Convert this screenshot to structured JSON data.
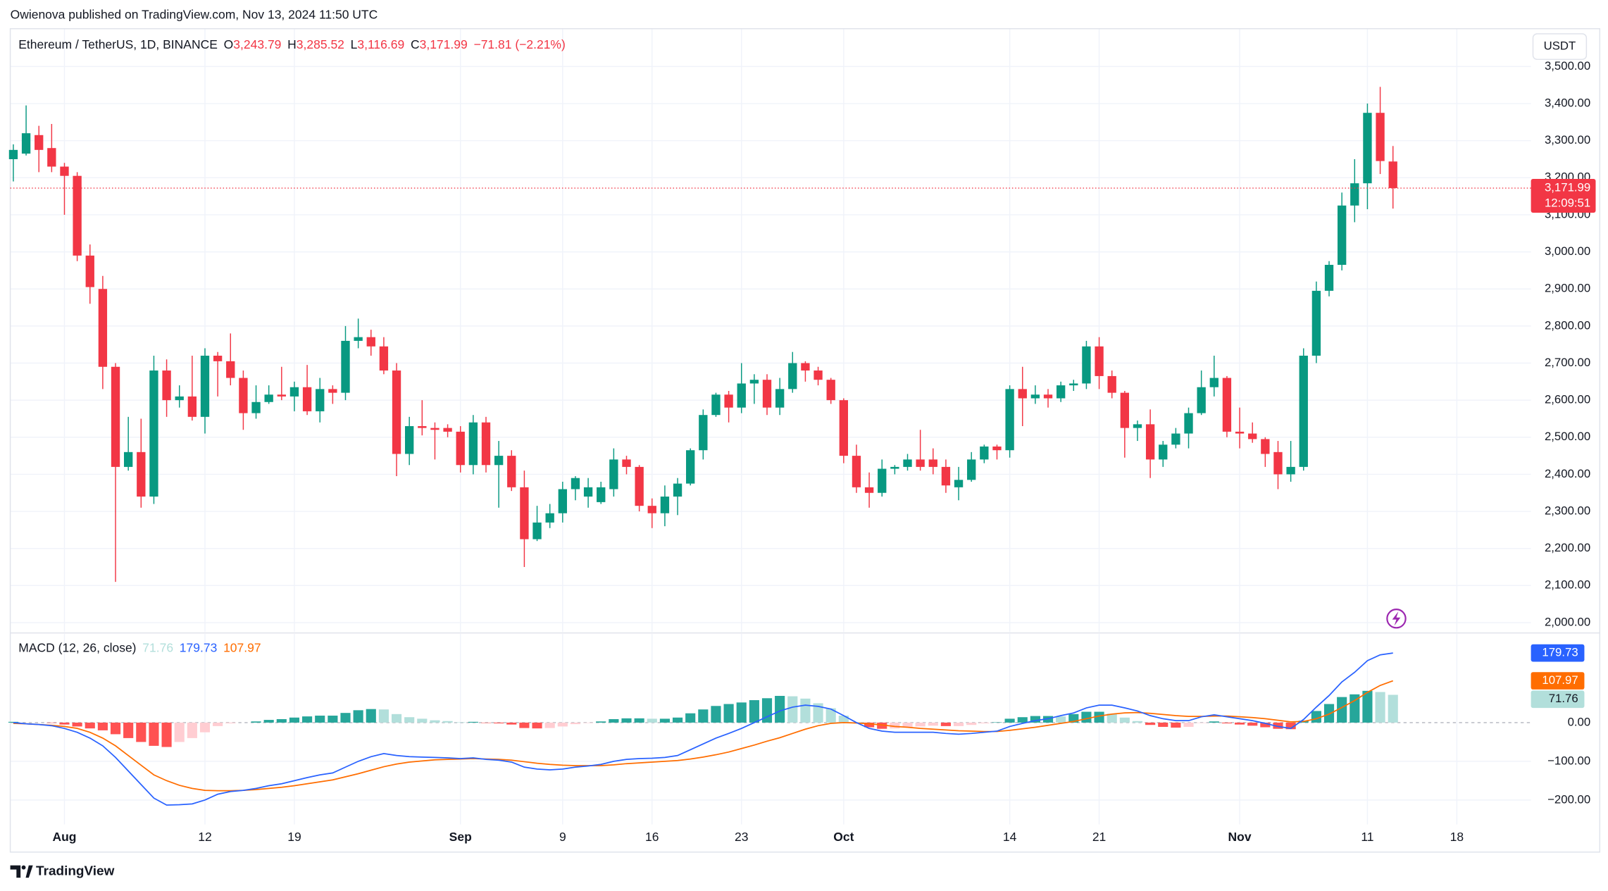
{
  "header": "Owienova published on TradingView.com, Nov 13, 2024 11:50 UTC",
  "footer": "TradingView",
  "chart_data": [
    {
      "type": "candlestick",
      "title": "Ethereum / TetherUS, 1D, BINANCE",
      "ohlc_legend": [
        {
          "label": "O",
          "value": "3,243.79"
        },
        {
          "label": "H",
          "value": "3,285.52"
        },
        {
          "label": "L",
          "value": "3,116.69"
        },
        {
          "label": "C",
          "value": "3,171.99"
        }
      ],
      "change": "−71.81 (−2.21%)",
      "currency": "USDT",
      "countdown": "12:09:51",
      "up_color": "#089981",
      "down_color": "#f23645",
      "open": [
        3250,
        3265,
        3315,
        3280,
        3230,
        3205,
        2990,
        2900,
        2690,
        2420,
        2460,
        2340,
        2680,
        2600,
        2610,
        2555,
        2720,
        2705,
        2660,
        2565,
        2595,
        2615,
        2610,
        2635,
        2570,
        2630,
        2620,
        2760,
        2770,
        2745,
        2680,
        2455,
        2530,
        2525,
        2525,
        2515,
        2425,
        2540,
        2425,
        2450,
        2365,
        2225,
        2270,
        2295,
        2360,
        2340,
        2325,
        2360,
        2440,
        2420,
        2315,
        2295,
        2340,
        2375,
        2465,
        2560,
        2615,
        2580,
        2645,
        2655,
        2580,
        2630,
        2700,
        2680,
        2655,
        2600,
        2450,
        2365,
        2350,
        2415,
        2420,
        2440,
        2440,
        2420,
        2365,
        2385,
        2440,
        2475,
        2465,
        2630,
        2605,
        2615,
        2605,
        2640,
        2645,
        2745,
        2665,
        2620,
        2525,
        2535,
        2440,
        2480,
        2510,
        2565,
        2635,
        2660,
        2515,
        2510,
        2495,
        2460,
        2400,
        2420,
        2720,
        2895,
        2965,
        3125,
        3185,
        3375,
        3243.79
      ],
      "high": [
        3290,
        3395,
        3340,
        3345,
        3240,
        3215,
        3020,
        2935,
        2700,
        2555,
        2550,
        2720,
        2710,
        2640,
        2720,
        2740,
        2730,
        2780,
        2680,
        2640,
        2640,
        2690,
        2650,
        2695,
        2660,
        2640,
        2800,
        2820,
        2790,
        2770,
        2700,
        2555,
        2600,
        2540,
        2535,
        2530,
        2560,
        2555,
        2490,
        2465,
        2410,
        2315,
        2320,
        2380,
        2395,
        2390,
        2380,
        2470,
        2450,
        2425,
        2335,
        2370,
        2390,
        2470,
        2575,
        2620,
        2625,
        2700,
        2670,
        2670,
        2660,
        2730,
        2705,
        2690,
        2660,
        2605,
        2480,
        2405,
        2440,
        2425,
        2455,
        2520,
        2470,
        2440,
        2420,
        2460,
        2480,
        2480,
        2640,
        2690,
        2640,
        2630,
        2650,
        2655,
        2760,
        2770,
        2680,
        2625,
        2545,
        2575,
        2490,
        2525,
        2580,
        2680,
        2720,
        2665,
        2580,
        2540,
        2500,
        2490,
        2490,
        2740,
        2920,
        2975,
        3160,
        3250,
        3400,
        3445,
        3285.52
      ],
      "low": [
        3190,
        3260,
        3215,
        3215,
        3100,
        2975,
        2860,
        2630,
        2110,
        2410,
        2310,
        2320,
        2555,
        2580,
        2545,
        2510,
        2610,
        2640,
        2520,
        2550,
        2590,
        2600,
        2570,
        2560,
        2540,
        2590,
        2600,
        2740,
        2720,
        2670,
        2395,
        2425,
        2505,
        2440,
        2500,
        2405,
        2400,
        2405,
        2310,
        2355,
        2150,
        2220,
        2255,
        2270,
        2330,
        2310,
        2320,
        2340,
        2400,
        2300,
        2255,
        2260,
        2290,
        2370,
        2440,
        2555,
        2540,
        2565,
        2590,
        2560,
        2560,
        2620,
        2650,
        2640,
        2590,
        2430,
        2350,
        2310,
        2340,
        2400,
        2410,
        2410,
        2400,
        2350,
        2330,
        2380,
        2430,
        2440,
        2445,
        2530,
        2590,
        2580,
        2595,
        2625,
        2630,
        2630,
        2605,
        2445,
        2490,
        2390,
        2420,
        2470,
        2470,
        2560,
        2610,
        2500,
        2470,
        2485,
        2420,
        2360,
        2380,
        2410,
        2700,
        2880,
        2950,
        3080,
        3115,
        3210,
        3116.69
      ],
      "close": [
        3275,
        3320,
        3275,
        3230,
        3205,
        2990,
        2905,
        2690,
        2420,
        2460,
        2340,
        2680,
        2600,
        2610,
        2555,
        2720,
        2705,
        2660,
        2565,
        2595,
        2615,
        2610,
        2635,
        2570,
        2630,
        2620,
        2760,
        2770,
        2745,
        2680,
        2455,
        2530,
        2525,
        2520,
        2515,
        2425,
        2540,
        2425,
        2450,
        2365,
        2225,
        2270,
        2295,
        2360,
        2390,
        2365,
        2365,
        2440,
        2420,
        2315,
        2295,
        2340,
        2375,
        2465,
        2560,
        2615,
        2580,
        2645,
        2655,
        2580,
        2630,
        2700,
        2680,
        2655,
        2600,
        2450,
        2365,
        2350,
        2415,
        2420,
        2440,
        2420,
        2420,
        2370,
        2385,
        2440,
        2475,
        2465,
        2630,
        2605,
        2615,
        2605,
        2640,
        2645,
        2745,
        2665,
        2620,
        2525,
        2535,
        2440,
        2480,
        2510,
        2565,
        2635,
        2660,
        2515,
        2510,
        2495,
        2455,
        2400,
        2420,
        2720,
        2895,
        2965,
        3125,
        3185,
        3375,
        3245,
        3171.99
      ],
      "xlim": [
        -0.24,
        118.8
      ],
      "xticks": [
        {
          "value": 4,
          "label": "Aug"
        },
        {
          "value": 15,
          "label": "12"
        },
        {
          "value": 22,
          "label": "19"
        },
        {
          "value": 35,
          "label": "Sep"
        },
        {
          "value": 43,
          "label": "9"
        },
        {
          "value": 50,
          "label": "16"
        },
        {
          "value": 57,
          "label": "23"
        },
        {
          "value": 65,
          "label": "Oct"
        },
        {
          "value": 78,
          "label": "14"
        },
        {
          "value": 85,
          "label": "21"
        },
        {
          "value": 96,
          "label": "Nov"
        },
        {
          "value": 106,
          "label": "11"
        },
        {
          "value": 113,
          "label": "18"
        }
      ],
      "ylim": [
        1975,
        3602
      ],
      "yticks": [
        {
          "value": 2000,
          "label": "2,000.00"
        },
        {
          "value": 2100,
          "label": "2,100.00"
        },
        {
          "value": 2200,
          "label": "2,200.00"
        },
        {
          "value": 2300,
          "label": "2,300.00"
        },
        {
          "value": 2400,
          "label": "2,400.00"
        },
        {
          "value": 2500,
          "label": "2,500.00"
        },
        {
          "value": 2600,
          "label": "2,600.00"
        },
        {
          "value": 2700,
          "label": "2,700.00"
        },
        {
          "value": 2800,
          "label": "2,800.00"
        },
        {
          "value": 2900,
          "label": "2,900.00"
        },
        {
          "value": 3000,
          "label": "3,000.00"
        },
        {
          "value": 3100,
          "label": "3,100.00"
        },
        {
          "value": 3200,
          "label": "3,200.00"
        },
        {
          "value": 3300,
          "label": "3,300.00"
        },
        {
          "value": 3400,
          "label": "3,400.00"
        },
        {
          "value": 3500,
          "label": "3,500.00"
        }
      ],
      "grid": true
    },
    {
      "type": "macd",
      "title": "MACD (12, 26, close)",
      "macd_color": "#2962ff",
      "signal_color": "#ff6d00",
      "hist_colors": {
        "up_rising": "#26a69a",
        "up_falling": "#b2dfdb",
        "down_falling": "#ff5252",
        "down_rising": "#ffcdd2"
      },
      "histogram": [
        2,
        0,
        0,
        -1,
        -5,
        -10,
        -15,
        -20,
        -30,
        -40,
        -50,
        -60,
        -63,
        -50,
        -40,
        -25,
        -9,
        -2,
        0,
        3,
        7,
        9,
        13,
        16,
        18,
        18,
        25,
        32,
        35,
        34,
        22,
        14,
        10,
        6,
        4,
        1,
        2,
        -1,
        -2,
        -5,
        -14,
        -15,
        -14,
        -10,
        -4,
        -1,
        3,
        9,
        11,
        11,
        10,
        10,
        13,
        24,
        34,
        43,
        48,
        52,
        58,
        63,
        69,
        68,
        62,
        50,
        37,
        18,
        1,
        -12,
        -16,
        -15,
        -13,
        -10,
        -8,
        -9,
        -9,
        -6,
        -2,
        1,
        10,
        14,
        17,
        17,
        16,
        22,
        28,
        28,
        23,
        13,
        4,
        -6,
        -11,
        -13,
        -11,
        -1,
        3,
        -2,
        -5,
        -8,
        -12,
        -16,
        -17,
        5,
        30,
        48,
        66,
        73,
        82,
        79,
        71.76
      ],
      "macd": [
        0,
        -3,
        -5,
        -8,
        -15,
        -25,
        -40,
        -60,
        -90,
        -125,
        -160,
        -195,
        -213,
        -212,
        -210,
        -200,
        -185,
        -178,
        -175,
        -170,
        -163,
        -158,
        -150,
        -142,
        -135,
        -130,
        -115,
        -100,
        -88,
        -80,
        -85,
        -88,
        -89,
        -90,
        -91,
        -93,
        -91,
        -95,
        -97,
        -102,
        -115,
        -120,
        -122,
        -120,
        -115,
        -112,
        -108,
        -100,
        -95,
        -93,
        -92,
        -90,
        -85,
        -70,
        -55,
        -40,
        -28,
        -15,
        0,
        15,
        30,
        40,
        45,
        42,
        35,
        18,
        0,
        -15,
        -22,
        -25,
        -25,
        -25,
        -25,
        -28,
        -30,
        -28,
        -25,
        -22,
        -10,
        -2,
        5,
        10,
        18,
        25,
        38,
        45,
        45,
        38,
        30,
        18,
        10,
        5,
        5,
        15,
        20,
        15,
        10,
        5,
        -2,
        -10,
        -15,
        8,
        40,
        70,
        105,
        130,
        160,
        175,
        179.73
      ],
      "signal": [
        -2,
        -3,
        -5,
        -7,
        -10,
        -15,
        -25,
        -40,
        -60,
        -85,
        -110,
        -135,
        -150,
        -162,
        -170,
        -175,
        -176,
        -176,
        -175,
        -173,
        -170,
        -167,
        -163,
        -158,
        -153,
        -148,
        -140,
        -132,
        -123,
        -114,
        -107,
        -102,
        -99,
        -96,
        -95,
        -94,
        -93,
        -94,
        -95,
        -97,
        -101,
        -105,
        -108,
        -110,
        -111,
        -111,
        -111,
        -109,
        -106,
        -104,
        -102,
        -100,
        -98,
        -94,
        -89,
        -83,
        -76,
        -67,
        -58,
        -48,
        -39,
        -28,
        -17,
        -8,
        -2,
        0,
        -1,
        -3,
        -6,
        -10,
        -12,
        -15,
        -17,
        -19,
        -21,
        -22,
        -23,
        -23,
        -20,
        -16,
        -12,
        -7,
        -2,
        3,
        10,
        17,
        22,
        25,
        26,
        24,
        21,
        18,
        16,
        16,
        17,
        17,
        15,
        13,
        10,
        6,
        2,
        3,
        10,
        22,
        39,
        57,
        78,
        96,
        107.97
      ],
      "ylim": [
        -263,
        229
      ],
      "yticks": [
        {
          "value": -200,
          "label": "−200.00"
        },
        {
          "value": -100,
          "label": "−100.00"
        },
        {
          "value": 0,
          "label": "0.00"
        }
      ],
      "grid": true
    }
  ]
}
